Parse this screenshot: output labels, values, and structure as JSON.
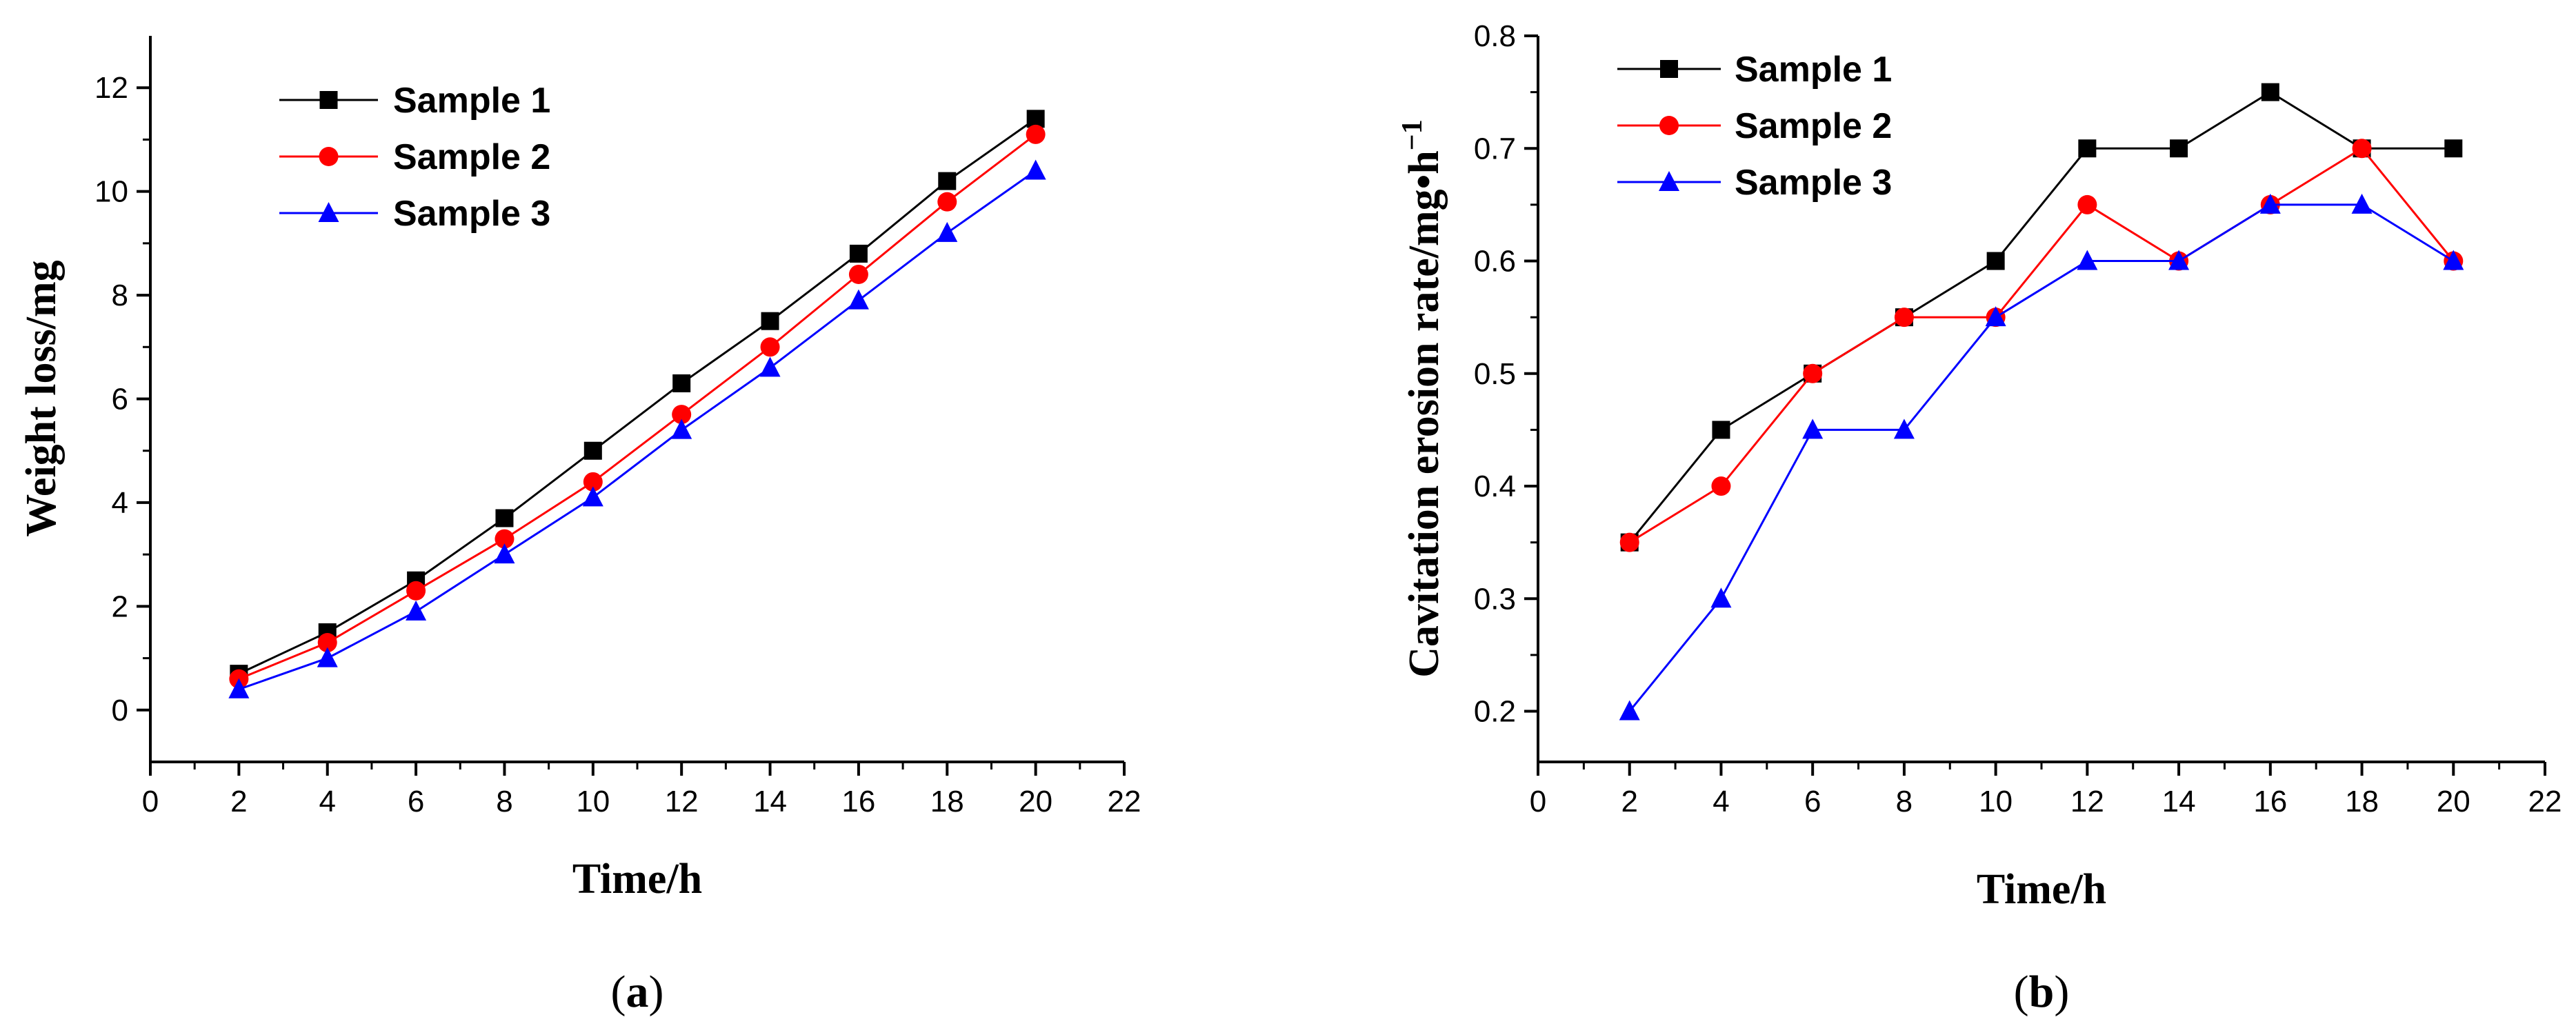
{
  "chart_data": [
    {
      "type": "line",
      "title": "",
      "caption_letter": "a",
      "xlabel": "Time/h",
      "ylabel": "Weight loss/mg",
      "xlim": [
        0,
        22
      ],
      "ylim": [
        -1,
        13
      ],
      "x_ticks": [
        "0",
        "2",
        "4",
        "6",
        "8",
        "10",
        "12",
        "14",
        "16",
        "18",
        "20",
        "22"
      ],
      "y_ticks": [
        "0",
        "2",
        "4",
        "6",
        "8",
        "10",
        "12"
      ],
      "x": [
        2,
        4,
        6,
        8,
        10,
        12,
        14,
        16,
        18,
        20
      ],
      "series": [
        {
          "name": "Sample 1",
          "color": "#000000",
          "marker": "square",
          "values": [
            0.7,
            1.5,
            2.5,
            3.7,
            5.0,
            6.3,
            7.5,
            8.8,
            10.2,
            11.4
          ]
        },
        {
          "name": "Sample 2",
          "color": "#ff0000",
          "marker": "circle",
          "values": [
            0.6,
            1.3,
            2.3,
            3.3,
            4.4,
            5.7,
            7.0,
            8.4,
            9.8,
            11.1
          ]
        },
        {
          "name": "Sample 3",
          "color": "#0000ff",
          "marker": "triangle",
          "values": [
            0.4,
            1.0,
            1.9,
            3.0,
            4.1,
            5.4,
            6.6,
            7.9,
            9.2,
            10.4
          ]
        }
      ]
    },
    {
      "type": "line",
      "title": "",
      "caption_letter": "b",
      "xlabel": "Time/h",
      "ylabel": "Cavitation erosion rate/mg•h",
      "ylabel_sup": "−1",
      "xlim": [
        0,
        22
      ],
      "ylim": [
        0.155,
        0.8
      ],
      "x_ticks": [
        "0",
        "2",
        "4",
        "6",
        "8",
        "10",
        "12",
        "14",
        "16",
        "18",
        "20",
        "22"
      ],
      "y_ticks": [
        "0.2",
        "0.3",
        "0.4",
        "0.5",
        "0.6",
        "0.7",
        "0.8"
      ],
      "x": [
        2,
        4,
        6,
        8,
        10,
        12,
        14,
        16,
        18,
        20
      ],
      "series": [
        {
          "name": "Sample 1",
          "color": "#000000",
          "marker": "square",
          "values": [
            0.35,
            0.45,
            0.5,
            0.55,
            0.6,
            0.7,
            0.7,
            0.75,
            0.7,
            0.7
          ]
        },
        {
          "name": "Sample 2",
          "color": "#ff0000",
          "marker": "circle",
          "values": [
            0.35,
            0.4,
            0.5,
            0.55,
            0.55,
            0.65,
            0.6,
            0.65,
            0.7,
            0.6
          ]
        },
        {
          "name": "Sample 3",
          "color": "#0000ff",
          "marker": "triangle",
          "values": [
            0.2,
            0.3,
            0.45,
            0.45,
            0.55,
            0.6,
            0.6,
            0.65,
            0.65,
            0.6
          ]
        }
      ]
    }
  ]
}
